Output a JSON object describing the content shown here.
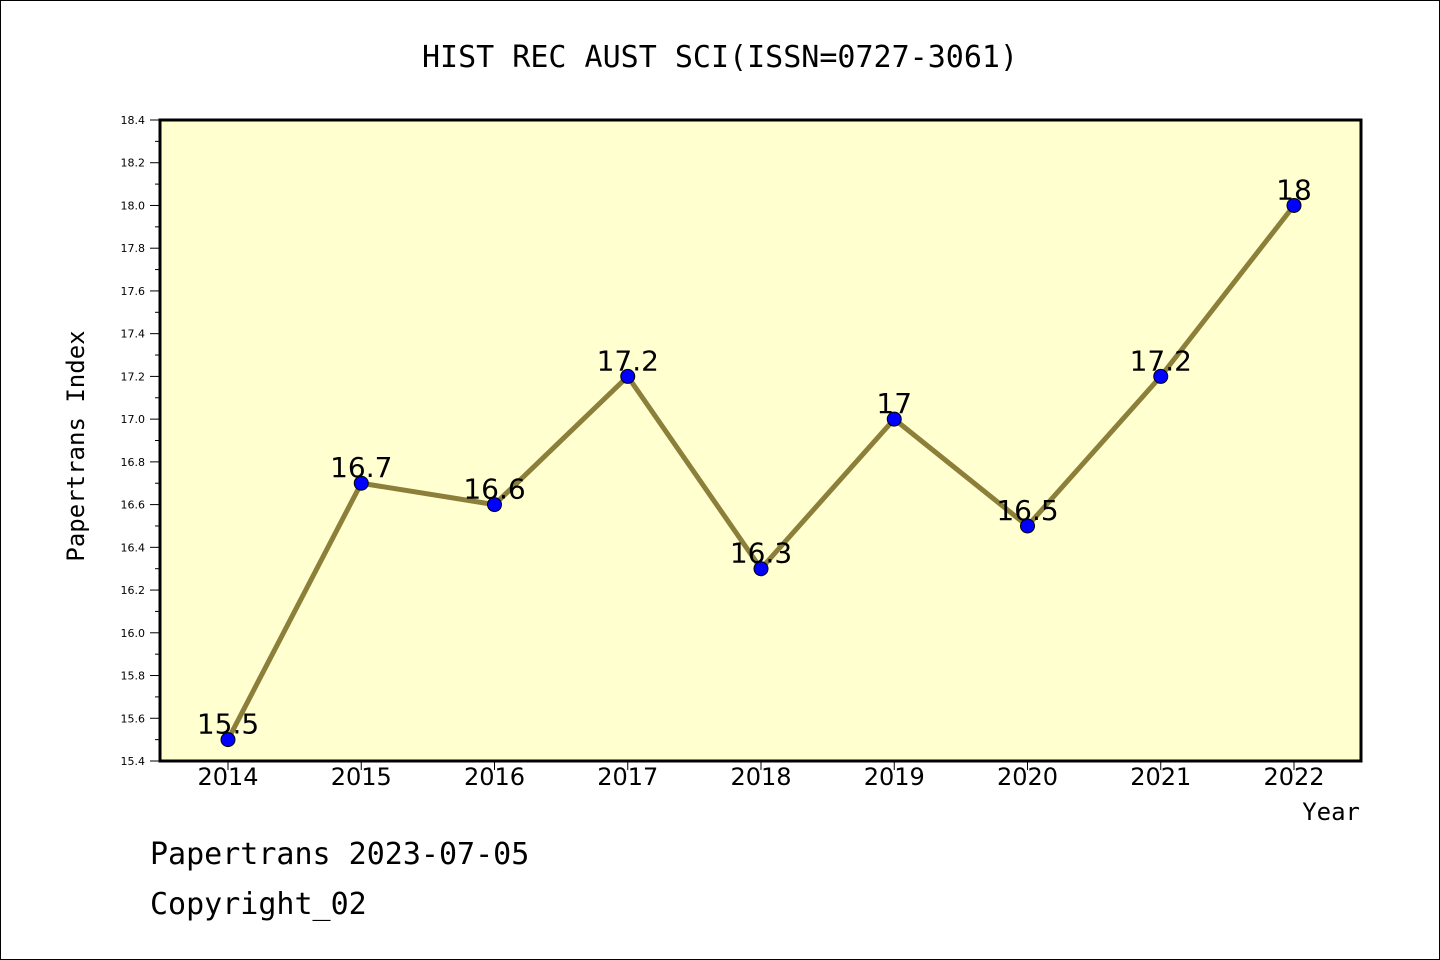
{
  "chart_data": {
    "type": "line",
    "title": "HIST REC AUST SCI(ISSN=0727-3061)",
    "xlabel": "Year",
    "ylabel": "Papertrans Index",
    "categories": [
      "2014",
      "2015",
      "2016",
      "2017",
      "2018",
      "2019",
      "2020",
      "2021",
      "2022"
    ],
    "series": [
      {
        "values": [
          15.5,
          16.7,
          16.6,
          17.2,
          16.3,
          17.0,
          16.5,
          17.2,
          18.0
        ]
      }
    ],
    "data_labels": [
      "15.5",
      "16.7",
      "16.6",
      "17.2",
      "16.3",
      "17",
      "16.5",
      "17.2",
      "18"
    ],
    "ylim": [
      15.4,
      18.4
    ],
    "yticks": [
      "15.4",
      "15.6",
      "15.8",
      "16.0",
      "16.2",
      "16.4",
      "16.6",
      "16.8",
      "17.0",
      "17.2",
      "17.4",
      "17.6",
      "17.8",
      "18.0",
      "18.2",
      "18.4"
    ],
    "grid": false,
    "legend": "none",
    "colors": {
      "plot_background": "#ffffd0",
      "line": "#8b7f3a",
      "marker": "#0000ff",
      "axis": "#000000"
    }
  },
  "footer": {
    "line1": "Papertrans 2023-07-05",
    "line2": "Copyright_02"
  }
}
